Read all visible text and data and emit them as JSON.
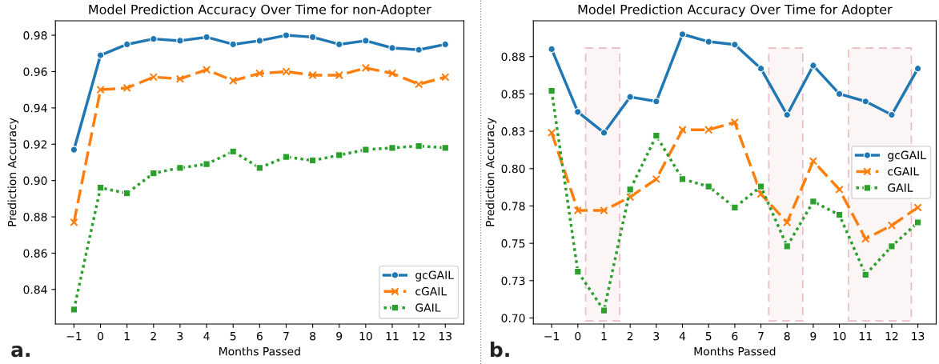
{
  "chart_data": [
    {
      "type": "line",
      "title": "Model Prediction Accuracy Over Time for non-Adopter",
      "xlabel": "Months Passed",
      "ylabel": "Prediction Accuracy",
      "x": [
        -1,
        0,
        1,
        2,
        3,
        4,
        5,
        6,
        7,
        8,
        9,
        10,
        11,
        12,
        13
      ],
      "series": [
        {
          "name": "gcGAIL",
          "color": "#1f77b4",
          "marker": "circle",
          "line_style": "solid",
          "values": [
            0.917,
            0.969,
            0.975,
            0.978,
            0.977,
            0.979,
            0.975,
            0.977,
            0.98,
            0.979,
            0.975,
            0.977,
            0.973,
            0.972,
            0.975
          ]
        },
        {
          "name": "cGAIL",
          "color": "#ff7f0e",
          "marker": "cross",
          "line_style": "dashed",
          "values": [
            0.877,
            0.95,
            0.951,
            0.957,
            0.956,
            0.961,
            0.955,
            0.959,
            0.96,
            0.958,
            0.958,
            0.962,
            0.959,
            0.953,
            0.957
          ]
        },
        {
          "name": "GAIL",
          "color": "#2ca02c",
          "marker": "square",
          "line_style": "dotted",
          "values": [
            0.829,
            0.896,
            0.893,
            0.904,
            0.907,
            0.909,
            0.916,
            0.907,
            0.913,
            0.911,
            0.914,
            0.917,
            0.918,
            0.919,
            0.918
          ]
        }
      ],
      "xlim": [
        -1.7,
        13.7
      ],
      "xticks": [
        {
          "value": -1,
          "label": "−1"
        },
        0,
        1,
        2,
        3,
        4,
        5,
        6,
        7,
        8,
        9,
        10,
        11,
        12,
        13
      ],
      "ylim": [
        0.821,
        0.988
      ],
      "yticks": [
        {
          "value": 0.84,
          "label": "0.84"
        },
        {
          "value": 0.86,
          "label": "0.86"
        },
        {
          "value": 0.88,
          "label": "0.88"
        },
        {
          "value": 0.9,
          "label": "0.90"
        },
        {
          "value": 0.92,
          "label": "0.92"
        },
        {
          "value": 0.94,
          "label": "0.94"
        },
        {
          "value": 0.96,
          "label": "0.96"
        },
        {
          "value": 0.98,
          "label": "0.98"
        }
      ],
      "legend": "bottom right",
      "grid": false,
      "annotations": [
        "a."
      ]
    },
    {
      "type": "line",
      "title": "Model Prediction Accuracy Over Time for Adopter",
      "xlabel": "Months Passed",
      "ylabel": "Prediction Accuracy",
      "x": [
        -1,
        0,
        1,
        2,
        3,
        4,
        5,
        6,
        7,
        8,
        9,
        10,
        11,
        12,
        13
      ],
      "series": [
        {
          "name": "gcGAIL",
          "color": "#1f77b4",
          "marker": "circle",
          "line_style": "solid",
          "values": [
            0.88,
            0.838,
            0.824,
            0.848,
            0.845,
            0.89,
            0.885,
            0.883,
            0.867,
            0.836,
            0.869,
            0.85,
            0.845,
            0.836,
            0.867
          ]
        },
        {
          "name": "cGAIL",
          "color": "#ff7f0e",
          "marker": "cross",
          "line_style": "dashed",
          "values": [
            0.824,
            0.772,
            0.772,
            0.781,
            0.793,
            0.826,
            0.826,
            0.831,
            0.783,
            0.764,
            0.805,
            0.786,
            0.753,
            0.762,
            0.774
          ]
        },
        {
          "name": "GAIL",
          "color": "#2ca02c",
          "marker": "square",
          "line_style": "dotted",
          "values": [
            0.852,
            0.731,
            0.705,
            0.786,
            0.822,
            0.793,
            0.788,
            0.774,
            0.788,
            0.748,
            0.778,
            0.769,
            0.729,
            0.748,
            0.764
          ]
        }
      ],
      "xlim": [
        -1.7,
        13.7
      ],
      "xticks": [
        {
          "value": -1,
          "label": "−1"
        },
        0,
        1,
        2,
        3,
        4,
        5,
        6,
        7,
        8,
        9,
        10,
        11,
        12,
        13
      ],
      "ylim": [
        0.696,
        0.899
      ],
      "yticks": [
        {
          "value": 0.7,
          "label": "0.70"
        },
        {
          "value": 0.725,
          "label": "0.73"
        },
        {
          "value": 0.75,
          "label": "0.75"
        },
        {
          "value": 0.775,
          "label": "0.78"
        },
        {
          "value": 0.8,
          "label": "0.80"
        },
        {
          "value": 0.825,
          "label": "0.83"
        },
        {
          "value": 0.85,
          "label": "0.85"
        },
        {
          "value": 0.875,
          "label": "0.88"
        }
      ],
      "bands": [
        {
          "axis": "x",
          "from": 0.3,
          "to": 1.6,
          "color": "#e8bcc2"
        },
        {
          "axis": "x",
          "from": 7.3,
          "to": 8.6,
          "color": "#e8bcc2"
        },
        {
          "axis": "x",
          "from": 10.35,
          "to": 12.75,
          "color": "#e8bcc2"
        }
      ],
      "legend": "right",
      "grid": false,
      "annotations": [
        "b."
      ]
    }
  ]
}
